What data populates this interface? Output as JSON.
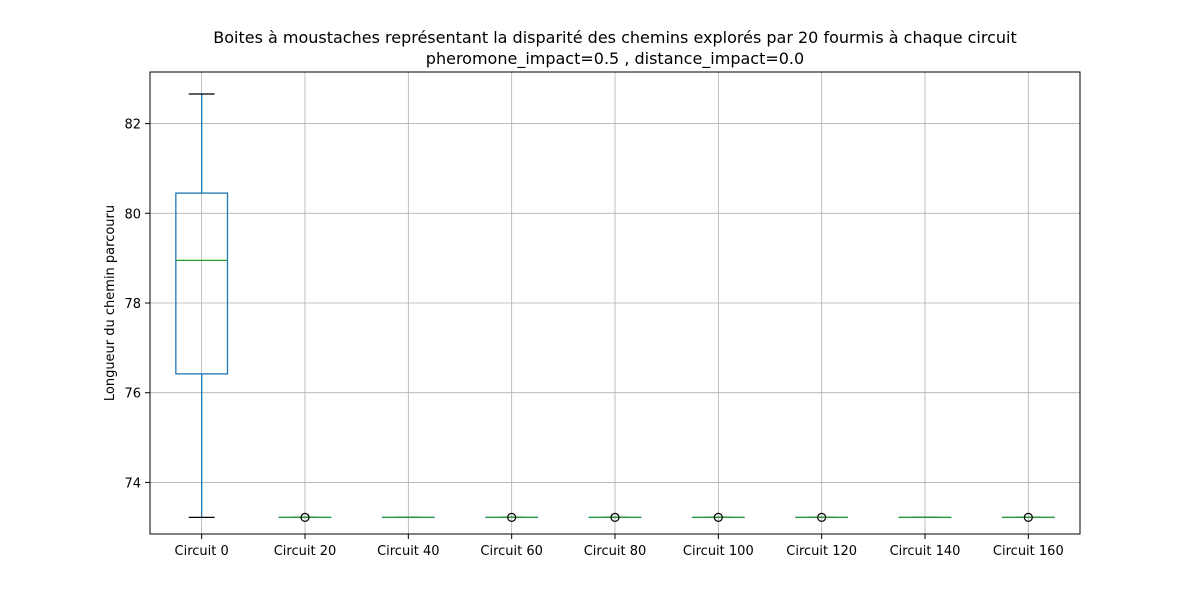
{
  "chart_data": {
    "type": "box",
    "title": "Boites à moustaches représentant la disparité des chemins explorés par 20 fourmis à chaque circuit",
    "subtitle": "pheromone_impact=0.5 , distance_impact=0.0",
    "xlabel": "",
    "ylabel": "Longueur du chemin parcouru",
    "ylim": [
      72.85,
      83.15
    ],
    "yticks": [
      74,
      76,
      78,
      80,
      82
    ],
    "grid": true,
    "categories": [
      "Circuit 0",
      "Circuit 20",
      "Circuit 40",
      "Circuit 60",
      "Circuit 80",
      "Circuit 100",
      "Circuit 120",
      "Circuit 140",
      "Circuit 160"
    ],
    "boxes": [
      {
        "whislo": 73.22,
        "q1": 76.42,
        "med": 78.95,
        "q3": 80.45,
        "whishi": 82.66,
        "fliers": []
      },
      {
        "whislo": 73.22,
        "q1": 73.22,
        "med": 73.22,
        "q3": 73.22,
        "whishi": 73.22,
        "fliers": [
          73.22
        ]
      },
      {
        "whislo": 73.22,
        "q1": 73.22,
        "med": 73.22,
        "q3": 73.22,
        "whishi": 73.22,
        "fliers": []
      },
      {
        "whislo": 73.22,
        "q1": 73.22,
        "med": 73.22,
        "q3": 73.22,
        "whishi": 73.22,
        "fliers": [
          73.22
        ]
      },
      {
        "whislo": 73.22,
        "q1": 73.22,
        "med": 73.22,
        "q3": 73.22,
        "whishi": 73.22,
        "fliers": [
          73.22
        ]
      },
      {
        "whislo": 73.22,
        "q1": 73.22,
        "med": 73.22,
        "q3": 73.22,
        "whishi": 73.22,
        "fliers": [
          73.22
        ]
      },
      {
        "whislo": 73.22,
        "q1": 73.22,
        "med": 73.22,
        "q3": 73.22,
        "whishi": 73.22,
        "fliers": [
          73.22
        ]
      },
      {
        "whislo": 73.22,
        "q1": 73.22,
        "med": 73.22,
        "q3": 73.22,
        "whishi": 73.22,
        "fliers": []
      },
      {
        "whislo": 73.22,
        "q1": 73.22,
        "med": 73.22,
        "q3": 73.22,
        "whishi": 73.22,
        "fliers": [
          73.22
        ]
      }
    ],
    "colors": {
      "box": "#1f77b4",
      "median": "#2ca02c",
      "cap": "#000000",
      "grid": "#b0b0b0",
      "axis": "#000000"
    }
  }
}
